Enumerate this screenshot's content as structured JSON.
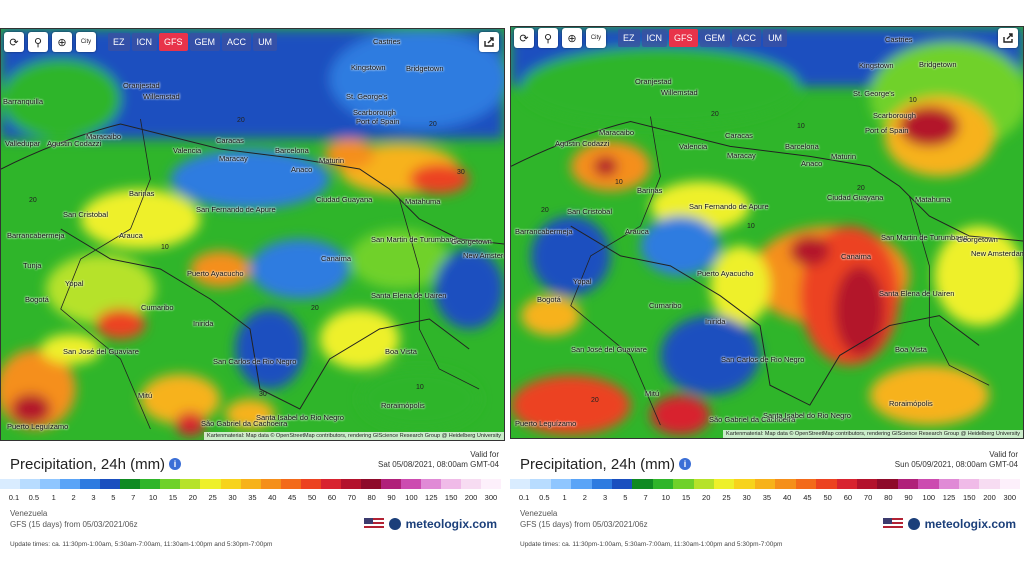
{
  "toolbar": {
    "buttons": [
      "⟳",
      "⚲",
      "⊕",
      "City"
    ],
    "models": [
      "EZ",
      "ICN",
      "GFS",
      "GEM",
      "ACC",
      "UM"
    ],
    "active_model": "GFS"
  },
  "attribution": "Kartenmaterial: Map data © OpenStreetMap contributors, rendering GIScience Research Group @ Heidelberg University",
  "legend": {
    "title": "Precipitation, 24h (mm)",
    "values": [
      "0.1",
      "0.5",
      "1",
      "2",
      "3",
      "5",
      "7",
      "10",
      "15",
      "20",
      "25",
      "30",
      "35",
      "40",
      "45",
      "50",
      "60",
      "70",
      "80",
      "90",
      "100",
      "125",
      "150",
      "200",
      "300"
    ],
    "colors": [
      "#d9ecff",
      "#b8dcff",
      "#8fc6ff",
      "#5aa4f7",
      "#2e7be0",
      "#1a4fbf",
      "#0f8a22",
      "#2fb52a",
      "#6fd12a",
      "#b6e22a",
      "#eef02a",
      "#f7d31c",
      "#f7b21a",
      "#f58f1a",
      "#f36a1a",
      "#ec4220",
      "#d8232f",
      "#b3122c",
      "#8e0a2a",
      "#b0207a",
      "#cc4bb0",
      "#e08ad6",
      "#f0bbe8",
      "#f7dcf2",
      "#fdf0fb"
    ]
  },
  "panels": [
    {
      "valid_label": "Valid for",
      "valid_date": "Sat 05/08/2021, 08:00am GMT-04",
      "region": "Venezuela",
      "model_run": "GFS (15 days) from 05/03/2021/06z",
      "brand": "meteologix.com",
      "updates": "Update times: ca. 11:30pm-1:00am, 5:30am-7:00am, 11:30am-1:00pm and 5:30pm-7:00pm",
      "cities": [
        "Castries",
        "Kingstown",
        "Bridgetown",
        "Oranjestad",
        "Willemstad",
        "St. George's",
        "Scarborough",
        "Port of Spain",
        "Barranquilla",
        "Maracaibo",
        "Caracas",
        "Valencia",
        "Maracay",
        "Barcelona",
        "Anaco",
        "Maturin",
        "San Cristobal",
        "Barinas",
        "San Fernando de Apure",
        "Ciudad Guayana",
        "Barrancabermeja",
        "Arauca",
        "San Martin de Turumbang",
        "Georgetown",
        "Puerto Ayacucho",
        "Canaima",
        "Tunja",
        "Bogotá",
        "Cumaribo",
        "Yopal",
        "Santa Elena de Uairen",
        "Inirida",
        "Boa Vista",
        "San José del Guaviare",
        "San Carlos de Rio Negro",
        "São Gabriel da Cachoeira",
        "Santa Isabel do Rio Negro",
        "Roraimópolis",
        "Puerto Leguízamo",
        "Mitú",
        "New Amsterdam",
        "Valledupar",
        "Agustin Codazzi",
        "Matahuma"
      ],
      "values": [
        "20",
        "20",
        "30",
        "20",
        "10",
        "30",
        "20",
        "10"
      ]
    },
    {
      "valid_label": "Valid for",
      "valid_date": "Sun 05/09/2021, 08:00am GMT-04",
      "region": "Venezuela",
      "model_run": "GFS (15 days) from 05/03/2021/06z",
      "brand": "meteologix.com",
      "updates": "Update times: ca. 11:30pm-1:00am, 5:30am-7:00am, 11:30am-1:00pm and 5:30pm-7:00pm",
      "cities": [
        "Castries",
        "Kingstown",
        "Bridgetown",
        "Oranjestad",
        "Willemstad",
        "St. George's",
        "Scarborough",
        "Port of Spain",
        "Maracaibo",
        "Caracas",
        "Valencia",
        "Maracay",
        "Barcelona",
        "Anaco",
        "Maturin",
        "San Cristobal",
        "Barinas",
        "San Fernando de Apure",
        "Ciudad Guayana",
        "Barrancabermeja",
        "Arauca",
        "San Martin de Turumbang",
        "Georgetown",
        "Puerto Ayacucho",
        "Canaima",
        "Bogotá",
        "Cumaribo",
        "Yopal",
        "Santa Elena de Uairen",
        "Inirida",
        "Boa Vista",
        "San José del Guaviare",
        "San Carlos de Rio Negro",
        "São Gabriel da Cachoeira",
        "Santa Isabel do Rio Negro",
        "Roraimópolis",
        "Puerto Leguízamo",
        "Mitú",
        "New Amsterdam",
        "Agustin Codazzi",
        "Matahuma"
      ],
      "values": [
        "20",
        "10",
        "20",
        "10",
        "20",
        "20",
        "10",
        "10"
      ]
    }
  ]
}
